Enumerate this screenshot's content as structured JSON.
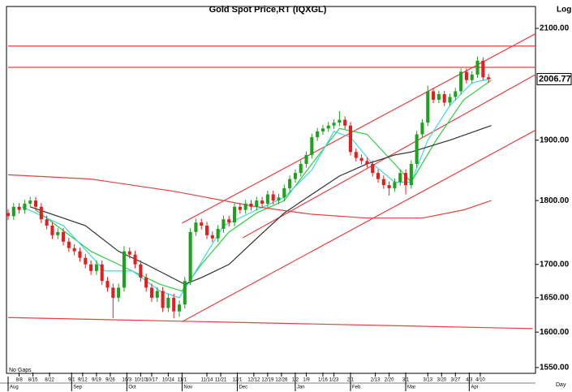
{
  "chart_data": {
    "type": "candlestick",
    "title": "Gold Spot Price,RT (IQXGL)",
    "scale_label": "Log",
    "x_unit_label": "Day",
    "note": "No Gaps",
    "log": true,
    "ylim": [
      1542,
      2123
    ],
    "yticks": [
      {
        "value": 1550,
        "label": "1550.00"
      },
      {
        "value": 1600,
        "label": "1600.00"
      },
      {
        "value": 1650,
        "label": "1650.00"
      },
      {
        "value": 1700,
        "label": "1700.00"
      },
      {
        "value": 1800,
        "label": "1800.00"
      },
      {
        "value": 1900,
        "label": "1900.00"
      },
      {
        "value": 2100,
        "label": "2100.00"
      }
    ],
    "xlim": [
      0,
      191
    ],
    "xticks": [
      {
        "value": 4,
        "label": "8/8"
      },
      {
        "value": 9,
        "label": "8/15"
      },
      {
        "value": 15,
        "label": "8/22"
      },
      {
        "value": 23,
        "label": "9/1"
      },
      {
        "value": 27,
        "label": "9/12"
      },
      {
        "value": 32,
        "label": "9/19"
      },
      {
        "value": 37,
        "label": "9/26"
      },
      {
        "value": 43,
        "label": "10/3"
      },
      {
        "value": 48,
        "label": "10/10"
      },
      {
        "value": 52,
        "label": "10/17"
      },
      {
        "value": 58,
        "label": "10/24"
      },
      {
        "value": 63,
        "label": "11/1"
      },
      {
        "value": 72,
        "label": "11/14"
      },
      {
        "value": 77,
        "label": "11/21"
      },
      {
        "value": 83,
        "label": "12/1"
      },
      {
        "value": 89,
        "label": "12/12"
      },
      {
        "value": 94,
        "label": "12/19"
      },
      {
        "value": 99,
        "label": "12/26"
      },
      {
        "value": 104,
        "label": "1/2"
      },
      {
        "value": 108,
        "label": "1/9"
      },
      {
        "value": 114,
        "label": "1/16"
      },
      {
        "value": 118,
        "label": "1/23"
      },
      {
        "value": 124,
        "label": "2/1"
      },
      {
        "value": 133,
        "label": "2/13"
      },
      {
        "value": 138,
        "label": "2/20"
      },
      {
        "value": 144,
        "label": "3/1"
      },
      {
        "value": 152,
        "label": "3/13"
      },
      {
        "value": 157,
        "label": "3/20"
      },
      {
        "value": 162,
        "label": "3/27"
      },
      {
        "value": 167,
        "label": "4/3"
      },
      {
        "value": 171,
        "label": "4/10"
      }
    ],
    "month_ticks": [
      {
        "value": 0,
        "label": "Aug"
      },
      {
        "value": 23,
        "label": "Sep"
      },
      {
        "value": 43,
        "label": "Oct"
      },
      {
        "value": 63,
        "label": "Nov"
      },
      {
        "value": 83,
        "label": "Dec"
      },
      {
        "value": 104,
        "label": "Jan"
      },
      {
        "value": 124,
        "label": "Feb"
      },
      {
        "value": 144,
        "label": "Mar"
      },
      {
        "value": 167,
        "label": "Apr"
      }
    ],
    "up_color": "#1fa01f",
    "down_color": "#e02020",
    "x": [
      0,
      2,
      4,
      6,
      8,
      10,
      12,
      14,
      16,
      18,
      20,
      22,
      24,
      26,
      28,
      30,
      32,
      34,
      36,
      38,
      40,
      42,
      44,
      46,
      48,
      50,
      52,
      54,
      56,
      58,
      60,
      62,
      64,
      66,
      68,
      70,
      72,
      74,
      76,
      78,
      80,
      82,
      84,
      86,
      88,
      90,
      92,
      94,
      96,
      98,
      100,
      102,
      104,
      106,
      108,
      110,
      112,
      114,
      116,
      118,
      120,
      122,
      124,
      126,
      128,
      130,
      132,
      134,
      136,
      138,
      140,
      142,
      144,
      146,
      148,
      150,
      152,
      154,
      156,
      158,
      160,
      162,
      164,
      166,
      168,
      170,
      172,
      174
    ],
    "open": [
      1780,
      1775,
      1790,
      1785,
      1795,
      1800,
      1790,
      1770,
      1760,
      1745,
      1750,
      1735,
      1725,
      1720,
      1710,
      1700,
      1690,
      1700,
      1675,
      1665,
      1650,
      1665,
      1720,
      1715,
      1700,
      1680,
      1665,
      1650,
      1660,
      1635,
      1650,
      1630,
      1640,
      1675,
      1750,
      1765,
      1760,
      1745,
      1740,
      1755,
      1770,
      1765,
      1790,
      1785,
      1795,
      1790,
      1800,
      1795,
      1810,
      1800,
      1805,
      1820,
      1835,
      1845,
      1860,
      1875,
      1905,
      1915,
      1920,
      1925,
      1930,
      1935,
      1925,
      1880,
      1870,
      1865,
      1860,
      1845,
      1835,
      1825,
      1820,
      1830,
      1845,
      1825,
      1860,
      1910,
      1930,
      1985,
      1970,
      1980,
      1965,
      1975,
      1985,
      2020,
      2005,
      2015,
      2040,
      2010
    ],
    "high": [
      1786,
      1796,
      1796,
      1801,
      1806,
      1806,
      1796,
      1776,
      1766,
      1756,
      1756,
      1741,
      1731,
      1726,
      1716,
      1706,
      1706,
      1706,
      1681,
      1671,
      1671,
      1728,
      1726,
      1721,
      1706,
      1686,
      1671,
      1666,
      1666,
      1656,
      1656,
      1646,
      1681,
      1756,
      1771,
      1771,
      1766,
      1751,
      1761,
      1776,
      1776,
      1796,
      1796,
      1801,
      1801,
      1806,
      1806,
      1816,
      1816,
      1811,
      1826,
      1841,
      1851,
      1866,
      1881,
      1911,
      1921,
      1926,
      1931,
      1936,
      1950,
      1941,
      1931,
      1886,
      1876,
      1871,
      1866,
      1851,
      1841,
      1831,
      1836,
      1851,
      1851,
      1866,
      1916,
      1936,
      1995,
      1991,
      1986,
      1986,
      1981,
      1991,
      2026,
      2026,
      2021,
      2048,
      2046,
      2016
    ],
    "low": [
      1769,
      1769,
      1779,
      1779,
      1789,
      1784,
      1764,
      1754,
      1739,
      1739,
      1729,
      1719,
      1714,
      1704,
      1694,
      1684,
      1684,
      1669,
      1659,
      1620,
      1644,
      1659,
      1709,
      1694,
      1674,
      1659,
      1644,
      1644,
      1629,
      1629,
      1620,
      1622,
      1634,
      1669,
      1744,
      1754,
      1739,
      1734,
      1734,
      1749,
      1759,
      1759,
      1779,
      1779,
      1784,
      1784,
      1789,
      1789,
      1794,
      1794,
      1799,
      1814,
      1829,
      1839,
      1854,
      1869,
      1899,
      1909,
      1914,
      1919,
      1924,
      1919,
      1874,
      1864,
      1859,
      1854,
      1839,
      1829,
      1819,
      1808,
      1814,
      1824,
      1810,
      1819,
      1854,
      1904,
      1924,
      1964,
      1964,
      1959,
      1959,
      1969,
      1979,
      1999,
      1999,
      2009,
      2004,
      2000
    ],
    "close": [
      1775,
      1790,
      1785,
      1795,
      1800,
      1790,
      1770,
      1760,
      1745,
      1750,
      1735,
      1725,
      1720,
      1710,
      1700,
      1690,
      1700,
      1675,
      1665,
      1650,
      1665,
      1720,
      1715,
      1700,
      1680,
      1665,
      1650,
      1660,
      1635,
      1650,
      1630,
      1640,
      1675,
      1750,
      1765,
      1760,
      1745,
      1740,
      1755,
      1770,
      1765,
      1790,
      1785,
      1795,
      1790,
      1800,
      1795,
      1810,
      1800,
      1805,
      1820,
      1835,
      1845,
      1860,
      1875,
      1905,
      1915,
      1920,
      1925,
      1930,
      1935,
      1925,
      1880,
      1870,
      1865,
      1860,
      1845,
      1835,
      1825,
      1820,
      1830,
      1845,
      1825,
      1860,
      1910,
      1930,
      1985,
      1970,
      1980,
      1965,
      1975,
      1985,
      2020,
      2005,
      2015,
      2040,
      2010,
      2006.77
    ],
    "overlays": [
      {
        "color": "#2ecc40",
        "x": [
          10,
          30,
          45,
          55,
          63,
          70,
          80,
          90,
          100,
          110,
          120,
          130,
          140,
          146,
          155,
          165,
          175
        ],
        "values": [
          1785,
          1720,
          1690,
          1670,
          1660,
          1700,
          1750,
          1780,
          1800,
          1860,
          1920,
          1910,
          1860,
          1830,
          1900,
          1970,
          2005
        ]
      },
      {
        "color": "#40d8e0",
        "x": [
          5,
          20,
          35,
          45,
          55,
          62,
          68,
          78,
          90,
          100,
          110,
          118,
          124,
          132,
          140,
          146,
          152,
          160,
          168,
          175
        ],
        "values": [
          1790,
          1760,
          1690,
          1690,
          1660,
          1650,
          1690,
          1760,
          1785,
          1805,
          1850,
          1915,
          1905,
          1860,
          1830,
          1830,
          1900,
          1960,
          2000,
          2008
        ]
      },
      {
        "color": "#303030",
        "x": [
          8,
          28,
          40,
          50,
          64,
          70,
          80,
          90,
          100,
          110,
          120,
          130,
          140,
          146,
          160,
          175
        ],
        "values": [
          1790,
          1760,
          1720,
          1700,
          1670,
          1680,
          1700,
          1740,
          1780,
          1810,
          1840,
          1860,
          1875,
          1880,
          1900,
          1925
        ]
      },
      {
        "color": "#e84040",
        "x": [
          0,
          30,
          60,
          90,
          110,
          130,
          150,
          165,
          175
        ],
        "values": [
          1842,
          1835,
          1815,
          1790,
          1778,
          1772,
          1772,
          1785,
          1800
        ]
      }
    ],
    "trend_color": "#e84040",
    "trend_lines": [
      {
        "x": [
          0,
          191
        ],
        "values": [
          2067,
          2067
        ]
      },
      {
        "x": [
          0,
          191
        ],
        "values": [
          2028,
          2028
        ]
      },
      {
        "x": [
          63,
          191
        ],
        "values": [
          1764,
          2090
        ]
      },
      {
        "x": [
          85,
          191
        ],
        "values": [
          1741,
          2015
        ]
      },
      {
        "x": [
          63,
          191
        ],
        "values": [
          1615,
          1917
        ]
      },
      {
        "x": [
          0,
          190
        ],
        "values": [
          1621,
          1605
        ]
      }
    ]
  }
}
